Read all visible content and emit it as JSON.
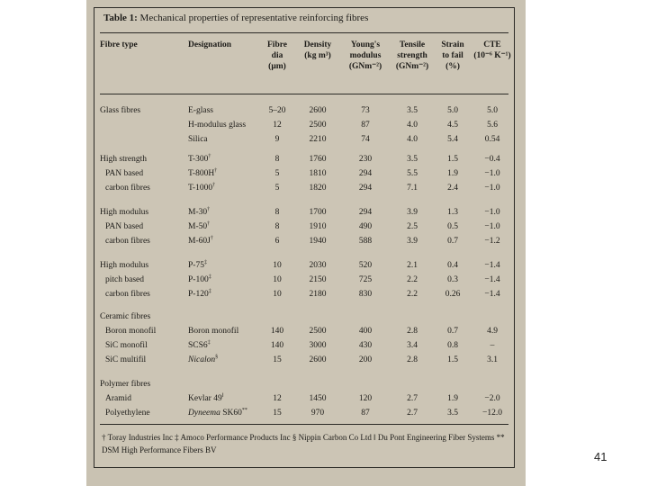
{
  "title_bold": "Table 1:",
  "title_rest": " Mechanical properties of representative reinforcing fibres",
  "headers": {
    "fibre_type": "Fibre type",
    "designation": "Designation",
    "dia": [
      "Fibre",
      "dia",
      "(μm)"
    ],
    "density": [
      "Density",
      "(kg m³)"
    ],
    "modulus": [
      "Young's",
      "modulus",
      "(GNm⁻²)"
    ],
    "strength": [
      "Tensile",
      "strength",
      "(GNm⁻²)"
    ],
    "strain": [
      "Strain",
      "to fail",
      "(%)"
    ],
    "cte": [
      "CTE",
      "(10⁻⁶ K⁻¹)"
    ]
  },
  "groups": [
    {
      "labels": [
        "Glass fibres",
        "",
        ""
      ],
      "rows": [
        {
          "des": "E-glass",
          "sup": "",
          "it": false,
          "dia": "5–20",
          "den": "2600",
          "mod": "73",
          "ts": "3.5",
          "st": "5.0",
          "cte": "5.0"
        },
        {
          "des": "H-modulus glass",
          "sup": "",
          "it": false,
          "dia": "12",
          "den": "2500",
          "mod": "87",
          "ts": "4.0",
          "st": "4.5",
          "cte": "5.6"
        },
        {
          "des": "Silica",
          "sup": "",
          "it": false,
          "dia": "9",
          "den": "2210",
          "mod": "74",
          "ts": "4.0",
          "st": "5.4",
          "cte": "0.54"
        }
      ]
    },
    {
      "labels": [
        "High strength",
        "PAN based",
        "carbon fibres"
      ],
      "rows": [
        {
          "des": "T-300",
          "sup": "†",
          "it": false,
          "dia": "8",
          "den": "1760",
          "mod": "230",
          "ts": "3.5",
          "st": "1.5",
          "cte": "−0.4"
        },
        {
          "des": "T-800H",
          "sup": "†",
          "it": false,
          "dia": "5",
          "den": "1810",
          "mod": "294",
          "ts": "5.5",
          "st": "1.9",
          "cte": "−1.0"
        },
        {
          "des": "T-1000",
          "sup": "†",
          "it": false,
          "dia": "5",
          "den": "1820",
          "mod": "294",
          "ts": "7.1",
          "st": "2.4",
          "cte": "−1.0"
        }
      ]
    },
    {
      "labels": [
        "High modulus",
        "PAN based",
        "carbon fibres"
      ],
      "rows": [
        {
          "des": "M-30",
          "sup": "†",
          "it": false,
          "dia": "8",
          "den": "1700",
          "mod": "294",
          "ts": "3.9",
          "st": "1.3",
          "cte": "−1.0"
        },
        {
          "des": "M-50",
          "sup": "†",
          "it": false,
          "dia": "8",
          "den": "1910",
          "mod": "490",
          "ts": "2.5",
          "st": "0.5",
          "cte": "−1.0"
        },
        {
          "des": "M-60J",
          "sup": "†",
          "it": false,
          "dia": "6",
          "den": "1940",
          "mod": "588",
          "ts": "3.9",
          "st": "0.7",
          "cte": "−1.2"
        }
      ]
    },
    {
      "labels": [
        "High modulus",
        "pitch based",
        "carbon fibres"
      ],
      "rows": [
        {
          "des": "P-75",
          "sup": "‡",
          "it": false,
          "dia": "10",
          "den": "2030",
          "mod": "520",
          "ts": "2.1",
          "st": "0.4",
          "cte": "−1.4"
        },
        {
          "des": "P-100",
          "sup": "‡",
          "it": false,
          "dia": "10",
          "den": "2150",
          "mod": "725",
          "ts": "2.2",
          "st": "0.3",
          "cte": "−1.4"
        },
        {
          "des": "P-120",
          "sup": "‡",
          "it": false,
          "dia": "10",
          "den": "2180",
          "mod": "830",
          "ts": "2.2",
          "st": "0.26",
          "cte": "−1.4"
        }
      ]
    },
    {
      "labels": [
        "Ceramic fibres",
        "Boron monofil",
        "SiC monofil",
        "SiC multifil"
      ],
      "rows": [
        {
          "des": "Boron monofil",
          "sup": "",
          "it": false,
          "dia": "140",
          "den": "2500",
          "mod": "400",
          "ts": "2.8",
          "st": "0.7",
          "cte": "4.9"
        },
        {
          "des": "SCS6",
          "sup": "‡",
          "it": false,
          "dia": "140",
          "den": "3000",
          "mod": "430",
          "ts": "3.4",
          "st": "0.8",
          "cte": "–"
        },
        {
          "des": "Nicalon",
          "sup": "§",
          "it": true,
          "dia": "15",
          "den": "2600",
          "mod": "200",
          "ts": "2.8",
          "st": "1.5",
          "cte": "3.1"
        }
      ]
    },
    {
      "labels": [
        "Polymer fibres",
        "Aramid",
        "Polyethylene"
      ],
      "rows": [
        {
          "des": "Kevlar 49",
          "sup": "‖",
          "it": false,
          "dia": "12",
          "den": "1450",
          "mod": "120",
          "ts": "2.7",
          "st": "1.9",
          "cte": "−2.0"
        },
        {
          "des": "Dyneema SK60",
          "sup": "**",
          "it": false,
          "dia": "15",
          "den": "970",
          "mod": "87",
          "ts": "2.7",
          "st": "3.5",
          "cte": "−12.0"
        }
      ]
    }
  ],
  "footnote": "† Toray Industries Inc ‡ Amoco Performance Products Inc § Nippin Carbon Co Ltd ‖ Du Pont Engineering Fiber Systems ** DSM High Performance Fibers BV",
  "page_number": "41"
}
